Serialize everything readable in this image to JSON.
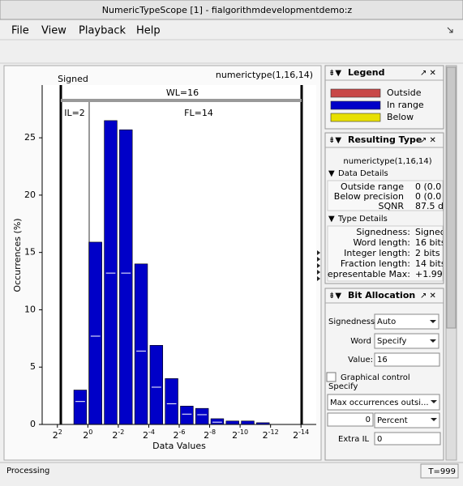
{
  "window": {
    "title": "NumericTypeScope [1] - fialgorithmdevelopmentdemo:z"
  },
  "menu": [
    "File",
    "View",
    "Playback",
    "Help"
  ],
  "chart_data": {
    "type": "histogram",
    "title_left": "Signed",
    "title_right": "numerictype(1,16,14)",
    "annotations": {
      "wl": "WL=16",
      "il": "IL=2",
      "fl": "FL=14"
    },
    "xlabel": "Data Values",
    "ylabel": "Occurrences (%)",
    "bins": [
      1,
      0,
      -1,
      -2,
      -3,
      -4,
      -5,
      -6,
      -7,
      -8,
      -9,
      -10,
      -11,
      -12
    ],
    "values": [
      3.0,
      15.9,
      26.5,
      25.7,
      14.0,
      6.9,
      4.0,
      1.6,
      1.4,
      0.5,
      0.3,
      0.3,
      0.15
    ],
    "inner_marks": [
      2.0,
      7.7,
      13.2,
      13.2,
      6.4,
      3.25,
      1.8,
      0.9,
      0.85,
      0.2,
      null,
      null,
      null
    ],
    "color": "#0000c8",
    "xlim": [
      3,
      -15
    ],
    "xticks": [
      {
        "value": 2,
        "label": "2^2"
      },
      {
        "value": 0,
        "label": "2^0"
      },
      {
        "value": -2,
        "label": "2^-2"
      },
      {
        "value": -4,
        "label": "2^-4"
      },
      {
        "value": -6,
        "label": "2^-6"
      },
      {
        "value": -8,
        "label": "2^-8"
      },
      {
        "value": -10,
        "label": "2^-10"
      },
      {
        "value": -12,
        "label": "2^-12"
      },
      {
        "value": -14,
        "label": "2^-14"
      }
    ],
    "ylim": [
      0,
      29.6
    ],
    "yticks": [
      0,
      5,
      10,
      15,
      20,
      25
    ]
  },
  "legend_panel": {
    "title": "Legend",
    "items": [
      {
        "label": "Outside",
        "color": "#c84848"
      },
      {
        "label": "In range",
        "color": "#0000c8"
      },
      {
        "label": "Below",
        "color": "#e8e000"
      }
    ]
  },
  "resulting_type_panel": {
    "title": "Resulting Type",
    "type": "numerictype(1,16,14)",
    "data_details": {
      "title": "Data Details",
      "rows": [
        [
          "Outside range",
          "0 (0.0"
        ],
        [
          "Below precision",
          "0 (0.0"
        ],
        [
          "SQNR",
          "87.5 d"
        ]
      ]
    },
    "type_details": {
      "title": "Type Details",
      "rows": [
        [
          "Signedness:",
          "Signed"
        ],
        [
          "Word length:",
          "16 bits"
        ],
        [
          "Integer length:",
          "2 bits"
        ],
        [
          "Fraction length:",
          "14 bits"
        ],
        [
          "Representable Max:",
          "+1.999"
        ]
      ]
    }
  },
  "bit_allocation_panel": {
    "title": "Bit Allocation",
    "signedness_label": "Signedness",
    "signedness": "Auto",
    "word_label": "Word",
    "word": "Specify",
    "value_label": "Value:",
    "value": "16",
    "graphical_control": "Graphical control",
    "specify_label": "Specify",
    "specify": "Max occurrences outsi...",
    "amount": "0",
    "unit": "Percent",
    "extra_il_label": "Extra IL",
    "extra_il": "0"
  },
  "status": {
    "text": "Processing",
    "time": "T=999"
  }
}
